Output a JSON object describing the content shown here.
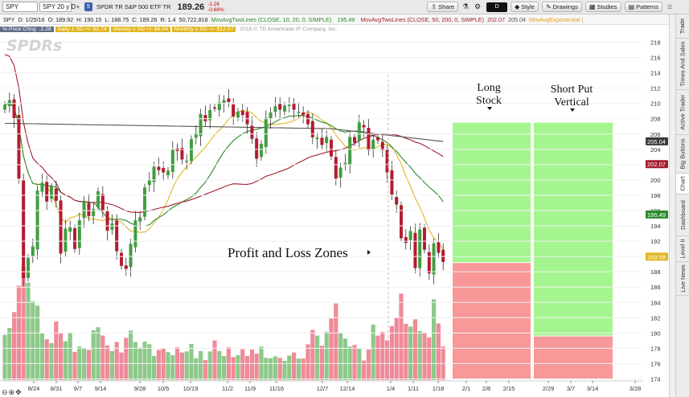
{
  "toolbar": {
    "symbol": "SPY",
    "aggregation": "SPY 20 y D",
    "link_badge": "5",
    "description": "SPDR TR S&P 500 ETF TR",
    "last_price": "189.26",
    "net_change": "-1.26",
    "pct_change": "-0.66%",
    "drawing_set": "D",
    "style_label": "Style",
    "drawings_label": "Drawings",
    "studies_label": "Studies",
    "patterns_label": "Patterns",
    "share_label": "Share"
  },
  "infobar": {
    "ticker": "SPY",
    "date": "D: 1/25/16",
    "open": "O: 189.92",
    "high": "H: 190.15",
    "low": "L: 188.75",
    "close": "C: 189.26",
    "range": "R: 1.4",
    "volume": "50,722,818",
    "study1": "MovAvgTwoLines (CLOSE, 10, 20, 0, SIMPLE)",
    "study1_value": "195.49",
    "study2": "MovAvgTwoLines (CLOSE, 50, 200, 0, SIMPLE)",
    "study2_value1": "202.07",
    "study2_value2": "205.04",
    "study3": "MovAvgExponential ("
  },
  "studybar": {
    "price_chng": "% Price Chng: -2.28",
    "daily": "Daily 1 SD +/- $2.74",
    "weekly": "Weekly 1 SD +/- $6.04",
    "monthly": "Monthly 1 SD +/- $12.57",
    "copyright": "2015 © TD Ameritrade IP Company, Inc."
  },
  "colors": {
    "up": "#3f9e3f",
    "down": "#b31b30",
    "vol_up": "#8dc98a",
    "vol_down": "#f08a98",
    "profit": "#a4f58f",
    "loss": "#f89898",
    "ma10": "#e2b520",
    "ma20": "#2b8a2b",
    "ma50": "#a01c2b",
    "ma200": "#555555"
  },
  "chart": {
    "logo": "SPDRs",
    "center_label": "Profit and Loss Zones",
    "zone1_label": [
      "Long",
      "Stock"
    ],
    "zone2_label": [
      "Short Put",
      "Vertical"
    ]
  },
  "chart_data": {
    "type": "candlestick",
    "y_ticks": [
      "218",
      "216",
      "214",
      "212",
      "210",
      "208",
      "206",
      "204",
      "202",
      "200",
      "198",
      "196",
      "194",
      "192",
      "190",
      "188",
      "186",
      "184",
      "182",
      "180",
      "178",
      "176",
      "174"
    ],
    "ylim": [
      173,
      219
    ],
    "x_ticks": [
      "8/24",
      "8/31",
      "9/7",
      "9/14",
      "9/28",
      "10/5",
      "10/19",
      "11/2",
      "11/9",
      "11/16",
      "12/7",
      "12/14",
      "1/4",
      "1/11",
      "1/18",
      "2/1",
      "2/8",
      "2/15",
      "2/29",
      "3/7",
      "3/14",
      "3/28"
    ],
    "price_badges": [
      {
        "value": "205.04",
        "color": "#3a3a3a"
      },
      {
        "value": "202.07",
        "color": "#a01c2b"
      },
      {
        "value": "195.49",
        "color": "#2b8a2b"
      },
      {
        "value": "189.98",
        "color": "#e2b520"
      }
    ],
    "closes": [
      209.8,
      210.4,
      208.1,
      200.2,
      187.2,
      189.8,
      191.3,
      198.6,
      199.6,
      197.2,
      199.1,
      197.3,
      190.4,
      193.6,
      193.8,
      191.0,
      194.7,
      197.2,
      195.3,
      196.2,
      198.5,
      196.0,
      193.4,
      194.3,
      190.7,
      188.8,
      188.4,
      191.6,
      194.7,
      195.1,
      199.0,
      200.0,
      201.7,
      201.3,
      201.0,
      201.2,
      204.0,
      203.8,
      202.7,
      202.5,
      205.3,
      206.1,
      208.6,
      207.7,
      209.1,
      209.4,
      210.1,
      210.4,
      210.2,
      208.3,
      208.9,
      208.5,
      207.3,
      205.4,
      202.8,
      204.7,
      208.1,
      208.8,
      209.6,
      209.2,
      209.7,
      209.8,
      209.2,
      208.9,
      208.5,
      207.3,
      205.6,
      205.5,
      204.6,
      205.6,
      203.1,
      200.2,
      201.6,
      202.2,
      205.6,
      204.9,
      207.5,
      206.9,
      203.9,
      205.2,
      205.2,
      203.9,
      201.0,
      198.1,
      196.8,
      192.4,
      191.8,
      193.3,
      188.5,
      193.5,
      190.9,
      187.8,
      191.7,
      190.5,
      189.3
    ],
    "volumes": [
      120,
      138,
      180,
      250,
      300,
      258,
      209,
      197,
      124,
      108,
      98,
      155,
      125,
      103,
      126,
      75,
      89,
      85,
      80,
      132,
      140,
      118,
      92,
      77,
      101,
      73,
      112,
      131,
      101,
      86,
      102,
      95,
      64,
      80,
      84,
      74,
      66,
      87,
      73,
      76,
      96,
      58,
      77,
      53,
      76,
      105,
      77,
      64,
      87,
      61,
      66,
      82,
      64,
      81,
      70,
      89,
      59,
      58,
      63,
      59,
      51,
      65,
      73,
      57,
      57,
      95,
      133,
      118,
      91,
      128,
      163,
      203,
      126,
      110,
      89,
      93,
      83,
      52,
      81,
      147,
      118,
      128,
      105,
      143,
      165,
      229,
      149,
      142,
      161,
      130,
      126,
      113,
      214,
      150,
      89
    ]
  },
  "side_tabs": [
    "Trade",
    "Times And Sales",
    "Active Trader",
    "Big Buttons",
    "Chart",
    "Dashboard",
    "Level II",
    "Live News"
  ]
}
